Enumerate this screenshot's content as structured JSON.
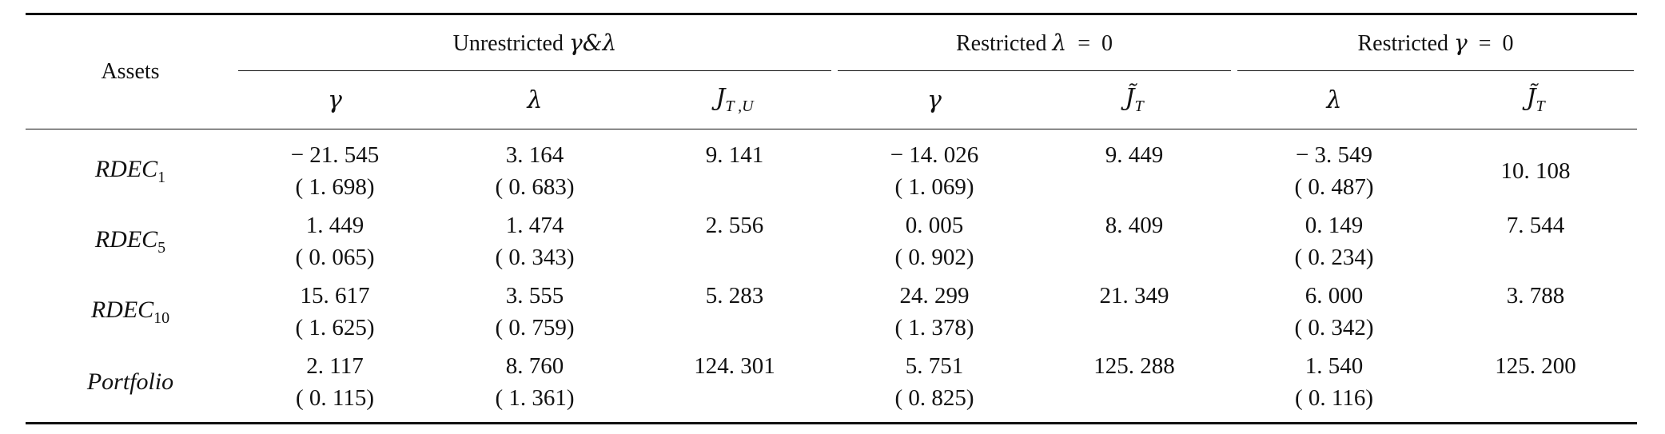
{
  "header": {
    "assets": "Assets",
    "groups": [
      {
        "prefix": "Unrestricted ",
        "symbol": "γ&λ",
        "suffix": ""
      },
      {
        "prefix": "Restricted ",
        "symbol": "λ",
        "suffix": "  =  0"
      },
      {
        "prefix": "Restricted ",
        "symbol": "γ",
        "suffix": "  =  0"
      }
    ],
    "subcols": [
      {
        "base": "γ",
        "sub": ""
      },
      {
        "base": "λ",
        "sub": ""
      },
      {
        "base": "J",
        "sub": "T ,U"
      },
      {
        "base": "γ",
        "sub": ""
      },
      {
        "base": "J̃",
        "sub": "T"
      },
      {
        "base": "λ",
        "sub": ""
      },
      {
        "base": "J̃",
        "sub": "T"
      }
    ]
  },
  "rows": [
    {
      "label": {
        "base": "RDEC",
        "sub": "1"
      },
      "cells": [
        {
          "v": "− 21. 545",
          "se": "( 1. 698)"
        },
        {
          "v": "3. 164",
          "se": "( 0. 683)"
        },
        {
          "v": "9. 141",
          "se": ""
        },
        {
          "v": "− 14. 026",
          "se": "( 1. 069)"
        },
        {
          "v": "9. 449",
          "se": ""
        },
        {
          "v": "− 3. 549",
          "se": "( 0. 487)"
        },
        {
          "v": "10. 108",
          "se": "",
          "center": true
        }
      ]
    },
    {
      "label": {
        "base": "RDEC",
        "sub": "5"
      },
      "cells": [
        {
          "v": "1. 449",
          "se": "( 0. 065)"
        },
        {
          "v": "1. 474",
          "se": "( 0. 343)"
        },
        {
          "v": "2. 556",
          "se": ""
        },
        {
          "v": "0. 005",
          "se": "( 0. 902)"
        },
        {
          "v": "8. 409",
          "se": ""
        },
        {
          "v": "0. 149",
          "se": "( 0. 234)"
        },
        {
          "v": "7. 544",
          "se": ""
        }
      ]
    },
    {
      "label": {
        "base": "RDEC",
        "sub": "10"
      },
      "cells": [
        {
          "v": "15. 617",
          "se": "( 1. 625)"
        },
        {
          "v": "3. 555",
          "se": "( 0. 759)"
        },
        {
          "v": "5. 283",
          "se": ""
        },
        {
          "v": "24. 299",
          "se": "( 1. 378)"
        },
        {
          "v": "21. 349",
          "se": ""
        },
        {
          "v": "6. 000",
          "se": "( 0. 342)"
        },
        {
          "v": "3. 788",
          "se": ""
        }
      ]
    },
    {
      "label": {
        "base": "Portfolio",
        "sub": ""
      },
      "cells": [
        {
          "v": "2. 117",
          "se": "( 0. 115)"
        },
        {
          "v": "8. 760",
          "se": "( 1. 361)"
        },
        {
          "v": "124. 301",
          "se": ""
        },
        {
          "v": "5. 751",
          "se": "( 0. 825)"
        },
        {
          "v": "125. 288",
          "se": ""
        },
        {
          "v": "1. 540",
          "se": "( 0. 116)"
        },
        {
          "v": "125. 200",
          "se": ""
        }
      ]
    }
  ]
}
